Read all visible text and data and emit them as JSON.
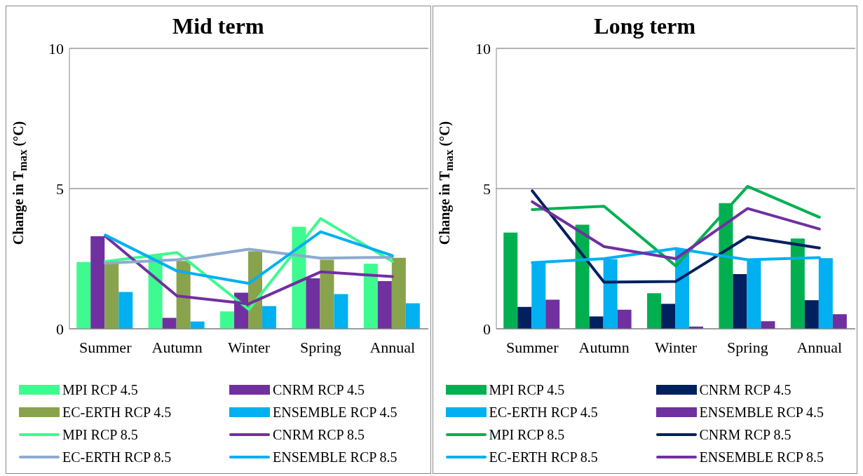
{
  "chart_data": [
    {
      "type": "bar",
      "title": "Mid term",
      "ylabel": "Change in T$_{max}$ (°C)",
      "categories": [
        "Summer",
        "Autumn",
        "Winter",
        "Spring",
        "Annual"
      ],
      "ylim": [
        0,
        10
      ],
      "yticks": [
        0,
        5,
        10
      ],
      "grid": "y",
      "legend": "bottom",
      "marker": "none",
      "series": [
        {
          "name": "MPI RCP 4.5",
          "color": "#3dfb8f",
          "values": [
            2.38,
            2.63,
            0.62,
            3.64,
            2.32
          ]
        },
        {
          "name": "CNRM RCP 4.5",
          "color": "#7030a0",
          "values": [
            3.3,
            0.39,
            1.29,
            1.8,
            1.7
          ]
        },
        {
          "name": "EC-ERTH RCP 4.5",
          "color": "#88a34b",
          "values": [
            2.4,
            2.42,
            2.76,
            2.46,
            2.53
          ]
        },
        {
          "name": "ENSEMBLE RCP 4.5",
          "color": "#00b0f0",
          "values": [
            1.31,
            0.26,
            0.81,
            1.24,
            0.91
          ]
        },
        {
          "name": "MPI RCP 8.5",
          "type": "line",
          "color": "#3dfb8f",
          "values": [
            2.4,
            2.72,
            0.69,
            3.93,
            2.4
          ]
        },
        {
          "name": "CNRM RCP 8.5",
          "type": "line",
          "color": "#7030a0",
          "values": [
            3.3,
            1.17,
            0.89,
            2.03,
            1.86
          ]
        },
        {
          "name": "EC-ERTH RCP 8.5",
          "type": "line",
          "color": "#8eaad0",
          "values": [
            2.34,
            2.46,
            2.84,
            2.52,
            2.55
          ]
        },
        {
          "name": "ENSEMBLE RCP 8.5",
          "type": "line",
          "color": "#00b0f0",
          "values": [
            3.34,
            2.06,
            1.62,
            3.46,
            2.61
          ]
        }
      ]
    },
    {
      "type": "bar",
      "title": "Long term",
      "ylabel": "Change in T$_{max}$ (°C)",
      "categories": [
        "Summer",
        "Autumn",
        "Winter",
        "Spring",
        "Annual"
      ],
      "ylim": [
        0,
        10
      ],
      "yticks": [
        0,
        5,
        10
      ],
      "grid": "y",
      "legend": "bottom",
      "marker": "none",
      "series": [
        {
          "name": "MPI RCP 4.5",
          "color": "#00b050",
          "values": [
            3.43,
            3.71,
            1.27,
            4.48,
            3.22
          ]
        },
        {
          "name": "CNRM RCP 4.5",
          "color": "#002060",
          "values": [
            0.78,
            0.44,
            0.89,
            1.95,
            1.02
          ]
        },
        {
          "name": "EC-ERTH RCP 4.5",
          "color": "#00b0f0",
          "values": [
            2.37,
            2.48,
            2.82,
            2.44,
            2.52
          ]
        },
        {
          "name": "ENSEMBLE RCP 4.5",
          "color": "#7030a0",
          "values": [
            1.04,
            0.68,
            0.08,
            0.27,
            0.52
          ]
        },
        {
          "name": "MPI RCP 8.5",
          "type": "line",
          "color": "#00b050",
          "values": [
            4.25,
            4.37,
            2.24,
            5.08,
            3.98
          ]
        },
        {
          "name": "CNRM RCP 8.5",
          "type": "line",
          "color": "#002060",
          "values": [
            4.92,
            1.66,
            1.69,
            3.28,
            2.88
          ]
        },
        {
          "name": "EC-ERTH RCP 8.5",
          "type": "line",
          "color": "#00b0f0",
          "values": [
            2.36,
            2.5,
            2.86,
            2.46,
            2.54
          ]
        },
        {
          "name": "ENSEMBLE RCP 8.5",
          "type": "line",
          "color": "#7030a0",
          "values": [
            4.53,
            2.93,
            2.5,
            4.29,
            3.56
          ]
        }
      ]
    }
  ]
}
